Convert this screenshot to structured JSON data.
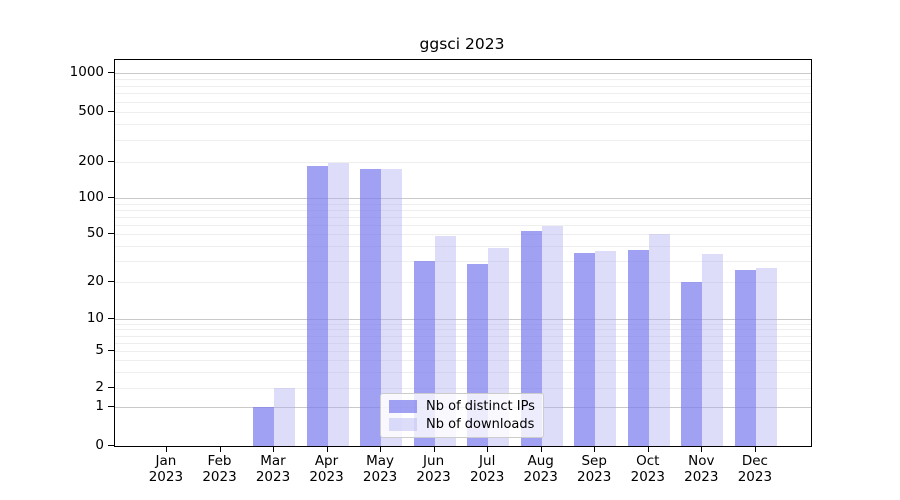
{
  "page": {
    "background": "#ffffff"
  },
  "chart_data": {
    "type": "bar",
    "title": "ggsci 2023",
    "categories": [
      "Jan 2023",
      "Feb 2023",
      "Mar 2023",
      "Apr 2023",
      "May 2023",
      "Jun 2023",
      "Jul 2023",
      "Aug 2023",
      "Sep 2023",
      "Oct 2023",
      "Nov 2023",
      "Dec 2023"
    ],
    "series": [
      {
        "name": "Nb of distinct IPs",
        "color": "#7d7dee",
        "alpha": 0.72,
        "values": [
          0,
          0,
          1,
          185,
          174,
          30,
          28,
          53,
          35,
          37,
          20,
          25
        ]
      },
      {
        "name": "Nb of downloads",
        "color": "#afaff2",
        "alpha": 0.42,
        "values": [
          0,
          0,
          2,
          195,
          176,
          48,
          38,
          58,
          36,
          50,
          34,
          26
        ]
      }
    ],
    "yscale": "log",
    "ytick_values": [
      0,
      1,
      2,
      5,
      10,
      20,
      50,
      100,
      200,
      500,
      1000
    ],
    "ytick_labels": [
      "0",
      "1",
      "2",
      "5",
      "10",
      "20",
      "50",
      "100",
      "200",
      "500",
      "1000"
    ],
    "ylim": [
      0,
      1300
    ],
    "grid": "horizontal",
    "legend_position": "bottom-center",
    "colors": {
      "axis": "#000000",
      "major_grid": "#c9c9c9",
      "minor_grid": "#eeeeee",
      "text": "#000000",
      "legend_border": "#cccccc"
    }
  }
}
